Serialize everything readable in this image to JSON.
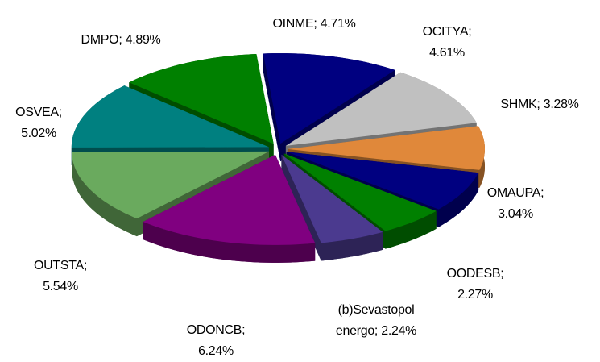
{
  "chart_data": {
    "type": "pie3d",
    "categories": [
      "OINME",
      "OCITYA",
      "SHMK",
      "OMAUPA",
      "OODESB",
      "(b)Sevastopol energo",
      "ODONCB",
      "OUTSTA",
      "OSVEA",
      "DMPO"
    ],
    "values": [
      4.71,
      4.61,
      3.28,
      3.04,
      2.27,
      2.24,
      6.24,
      5.54,
      5.02,
      4.89
    ],
    "value_labels": [
      "OINME; 4.71%",
      "OCITYA; 4.61%",
      "SHMK; 3.28%",
      "OMAUPA; 3.04%",
      "OODESB; 2.27%",
      "(b)Sevastopol energo; 2.24%",
      "ODONCB; 6.24%",
      "OUTSTA; 5.54%",
      "OSVEA; 5.02%",
      "DMPO; 4.89%"
    ],
    "colors": [
      "#000080",
      "#c0c0c0",
      "#e0883a",
      "#000080",
      "#008000",
      "#4b3a8f",
      "#800080",
      "#6aaa5e",
      "#008080",
      "#008000"
    ]
  }
}
